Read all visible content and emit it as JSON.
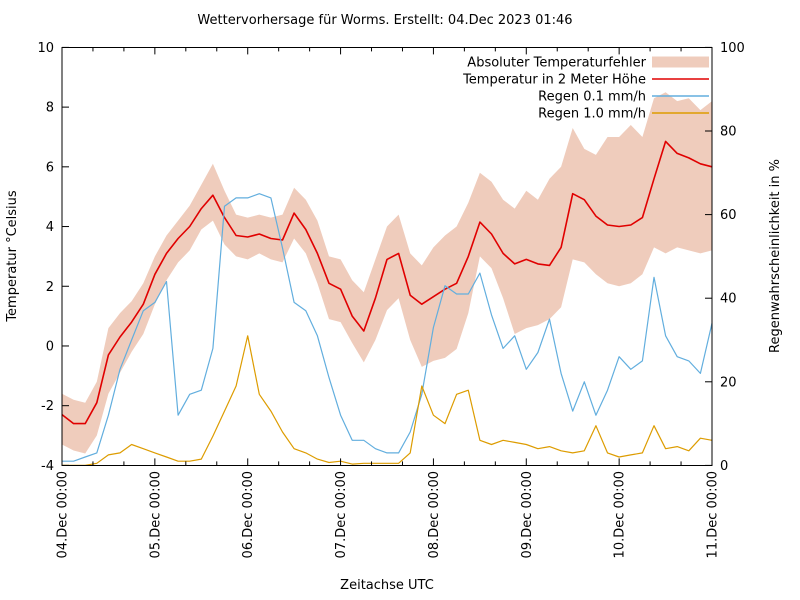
{
  "chart_data": {
    "type": "line",
    "title": "Wettervorhersage für Worms. Erstellt: 04.Dec 2023 01:46",
    "xlabel": "Zeitachse UTC",
    "ylabel_left": "Temperatur °Celsius",
    "ylabel_right": "Regenwahrscheinlichkeit in %",
    "x_tick_labels": [
      "04.Dec 00:00",
      "05.Dec 00:00",
      "06.Dec 00:00",
      "07.Dec 00:00",
      "08.Dec 00:00",
      "09.Dec 00:00",
      "10.Dec 00:00",
      "11.Dec 00:00"
    ],
    "y_left_ticks": [
      -4,
      -2,
      0,
      2,
      4,
      6,
      8,
      10
    ],
    "y_left_range": [
      -4,
      10
    ],
    "y_right_ticks": [
      0,
      20,
      40,
      60,
      80,
      100
    ],
    "y_right_range": [
      0,
      100
    ],
    "x_hours_range": [
      0,
      168
    ],
    "minor_x_ticks_per_day": 3,
    "grid": false,
    "legend_position": "top-right-inside",
    "background": "#ffffff",
    "x_hours": [
      0,
      3,
      6,
      9,
      12,
      15,
      18,
      21,
      24,
      27,
      30,
      33,
      36,
      39,
      42,
      45,
      48,
      51,
      54,
      57,
      60,
      63,
      66,
      69,
      72,
      75,
      78,
      81,
      84,
      87,
      90,
      93,
      96,
      99,
      102,
      105,
      108,
      111,
      114,
      117,
      120,
      123,
      126,
      129,
      132,
      135,
      138,
      141,
      144,
      147,
      150,
      153,
      156,
      159,
      162,
      165,
      168
    ],
    "series": [
      {
        "name": "Absoluter Temperaturfehler",
        "kind": "band",
        "axis": "left",
        "color": "#efccbc",
        "upper": [
          -1.6,
          -1.8,
          -1.9,
          -1.2,
          0.6,
          1.1,
          1.5,
          2.1,
          3.0,
          3.7,
          4.2,
          4.7,
          5.4,
          6.1,
          5.2,
          4.4,
          4.3,
          4.4,
          4.3,
          4.4,
          5.3,
          4.9,
          4.2,
          3.0,
          2.9,
          2.2,
          1.8,
          2.9,
          4.0,
          4.4,
          3.1,
          2.7,
          3.3,
          3.7,
          4.0,
          4.8,
          5.8,
          5.5,
          4.9,
          4.6,
          5.2,
          4.9,
          5.6,
          6.0,
          7.3,
          6.6,
          6.4,
          7.0,
          7.0,
          7.4,
          7.0,
          8.3,
          8.5,
          8.2,
          8.3,
          7.9,
          8.2
        ],
        "lower": [
          -3.3,
          -3.5,
          -3.6,
          -3.0,
          -1.6,
          -0.9,
          -0.2,
          0.4,
          1.4,
          2.2,
          2.8,
          3.2,
          3.9,
          4.2,
          3.4,
          3.0,
          2.9,
          3.1,
          2.9,
          2.8,
          3.6,
          3.1,
          2.1,
          0.9,
          0.8,
          0.1,
          -0.55,
          0.2,
          1.2,
          1.6,
          0.2,
          -0.7,
          -0.5,
          -0.4,
          -0.1,
          1.1,
          3.0,
          2.6,
          1.6,
          0.4,
          0.6,
          0.7,
          0.9,
          1.3,
          2.9,
          2.8,
          2.4,
          2.1,
          2.0,
          2.1,
          2.4,
          3.3,
          3.1,
          3.3,
          3.2,
          3.1,
          3.2
        ]
      },
      {
        "name": "Temperatur in 2 Meter Höhe",
        "kind": "line",
        "axis": "left",
        "color": "#e00000",
        "width": 1.6,
        "values": [
          -2.3,
          -2.6,
          -2.6,
          -1.9,
          -0.3,
          0.3,
          0.8,
          1.4,
          2.4,
          3.1,
          3.6,
          4.0,
          4.6,
          5.05,
          4.3,
          3.7,
          3.65,
          3.75,
          3.6,
          3.55,
          4.45,
          3.9,
          3.1,
          2.1,
          1.9,
          1.0,
          0.5,
          1.6,
          2.9,
          3.1,
          1.7,
          1.4,
          1.65,
          1.9,
          2.1,
          3.0,
          4.15,
          3.75,
          3.1,
          2.75,
          2.9,
          2.75,
          2.7,
          3.3,
          5.1,
          4.9,
          4.35,
          4.05,
          4.0,
          4.05,
          4.3,
          5.6,
          6.85,
          6.45,
          6.3,
          6.1,
          6.0
        ]
      },
      {
        "name": "Regen 0.1 mm/h",
        "kind": "line",
        "axis": "right",
        "color": "#62aede",
        "width": 1.2,
        "values": [
          1,
          1,
          2,
          3,
          12,
          23,
          30,
          37,
          39,
          44,
          12,
          17,
          18,
          28,
          62,
          64,
          64,
          65,
          64,
          52,
          39,
          37,
          31,
          21,
          12,
          6,
          6,
          4,
          3,
          3,
          8,
          17,
          33,
          43,
          41,
          41,
          46,
          36,
          28,
          31,
          23,
          27,
          35,
          22,
          13,
          20,
          12,
          18,
          26,
          23,
          25,
          45,
          31,
          26,
          25,
          22,
          34
        ]
      },
      {
        "name": "Regen 1.0 mm/h",
        "kind": "line",
        "axis": "right",
        "color": "#dd9c00",
        "width": 1.2,
        "values": [
          0,
          0,
          0,
          0.5,
          2.5,
          3,
          5,
          4,
          3,
          2,
          1,
          1,
          1.5,
          7,
          13,
          19,
          31,
          17,
          13,
          8,
          4,
          3,
          1.5,
          0.7,
          1,
          0.3,
          0.5,
          0.5,
          0.5,
          0.5,
          3,
          19,
          12,
          10,
          17,
          18,
          6,
          5,
          6,
          5.5,
          5,
          4,
          4.5,
          3.5,
          3,
          3.5,
          9.5,
          3,
          2,
          2.5,
          3,
          9.5,
          4,
          4.5,
          3.5,
          6.5,
          6
        ]
      }
    ]
  }
}
